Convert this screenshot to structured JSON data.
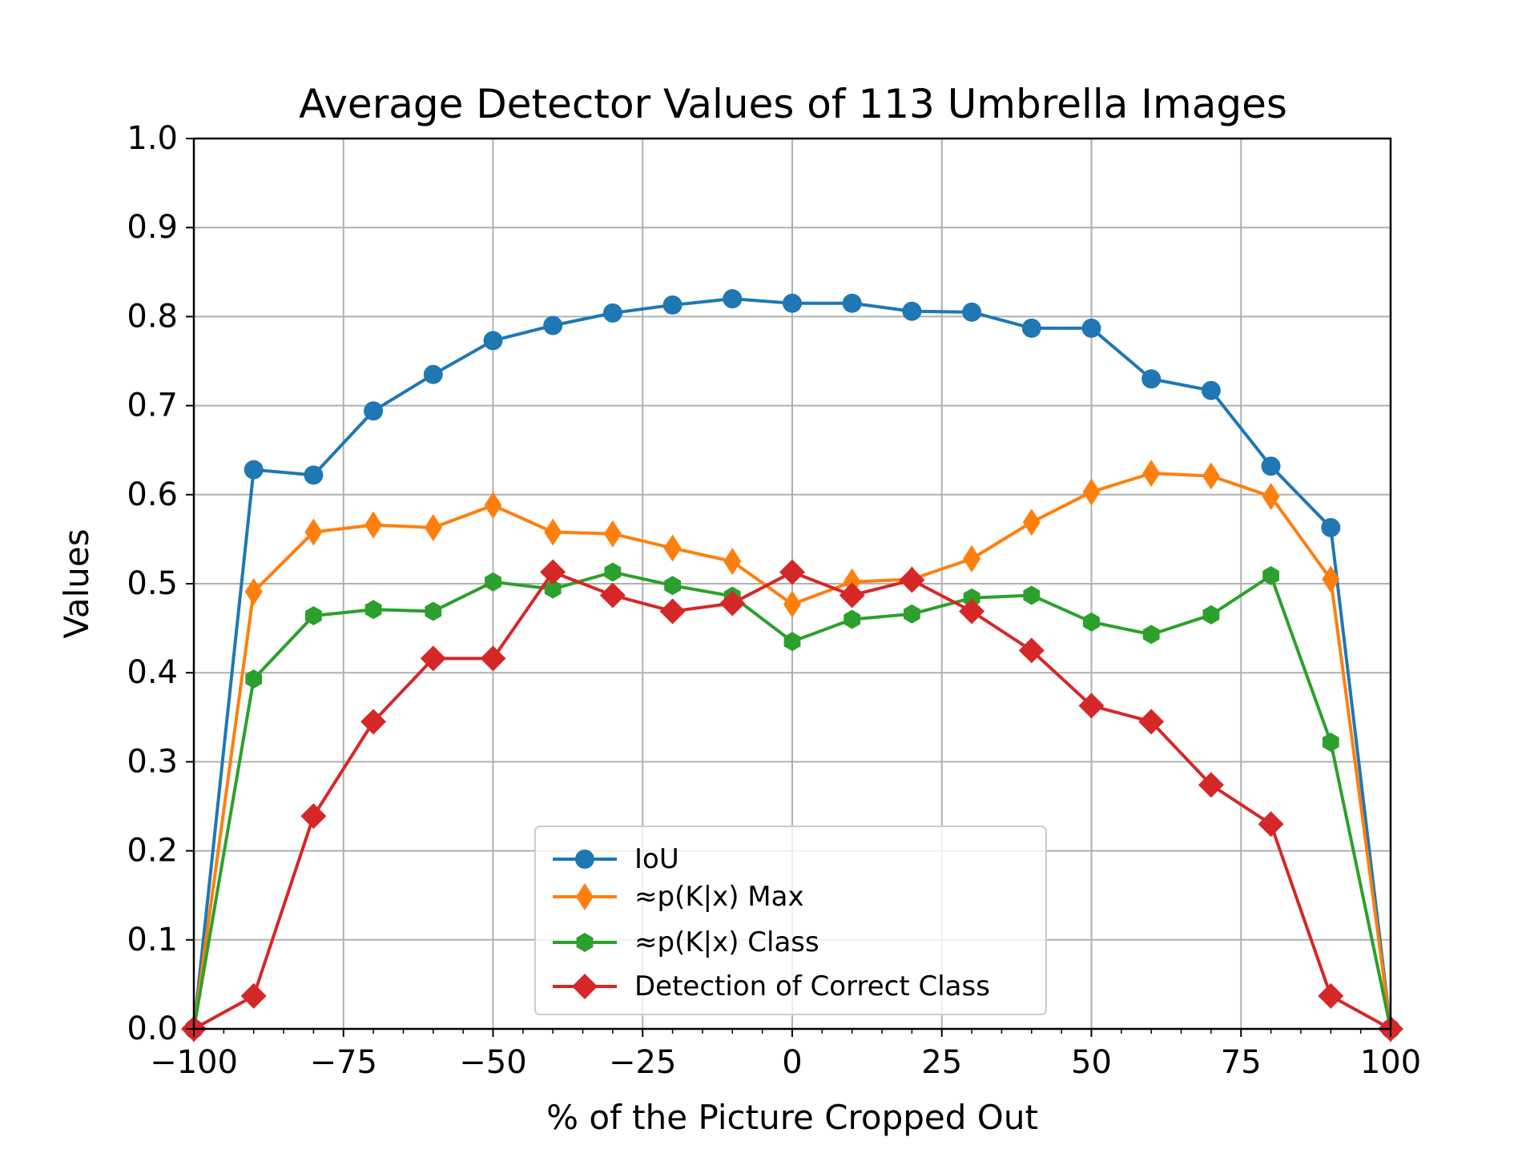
{
  "chart_data": {
    "type": "line",
    "title": "Average Detector Values of 113 Umbrella Images",
    "xlabel": "% of the Picture Cropped Out",
    "ylabel": "Values",
    "xlim": [
      -100,
      100
    ],
    "ylim": [
      0.0,
      1.0
    ],
    "grid": true,
    "legend_position": "lower-center",
    "x_ticks": [
      -100,
      -75,
      -50,
      -25,
      0,
      25,
      50,
      75,
      100
    ],
    "x_tick_labels": [
      "−100",
      "−75",
      "−50",
      "−25",
      "0",
      "25",
      "50",
      "75",
      "100"
    ],
    "y_ticks": [
      0.0,
      0.1,
      0.2,
      0.3,
      0.4,
      0.5,
      0.6,
      0.7,
      0.8,
      0.9,
      1.0
    ],
    "y_tick_labels": [
      "0.0",
      "0.1",
      "0.2",
      "0.3",
      "0.4",
      "0.5",
      "0.6",
      "0.7",
      "0.8",
      "0.9",
      "1.0"
    ],
    "x": [
      -100,
      -90,
      -80,
      -70,
      -60,
      -50,
      -40,
      -30,
      -20,
      -10,
      0,
      10,
      20,
      30,
      40,
      50,
      60,
      70,
      80,
      90,
      100
    ],
    "series": [
      {
        "name": "IoU",
        "color": "#1f77b4",
        "marker": "circle",
        "values": [
          0.0,
          0.628,
          0.622,
          0.694,
          0.735,
          0.773,
          0.79,
          0.804,
          0.813,
          0.82,
          0.815,
          0.815,
          0.806,
          0.805,
          0.787,
          0.787,
          0.73,
          0.717,
          0.632,
          0.563,
          0.0
        ]
      },
      {
        "name": "≈p(K|x) Max",
        "color": "#ff7f0e",
        "marker": "thin-diamond",
        "values": [
          0.0,
          0.491,
          0.558,
          0.566,
          0.563,
          0.588,
          0.558,
          0.556,
          0.54,
          0.525,
          0.477,
          0.502,
          0.505,
          0.528,
          0.569,
          0.603,
          0.624,
          0.621,
          0.598,
          0.505,
          0.0
        ]
      },
      {
        "name": "≈p(K|x) Class",
        "color": "#2ca02c",
        "marker": "hexagon",
        "values": [
          0.0,
          0.393,
          0.464,
          0.471,
          0.469,
          0.502,
          0.494,
          0.513,
          0.498,
          0.486,
          0.435,
          0.46,
          0.466,
          0.484,
          0.487,
          0.457,
          0.443,
          0.465,
          0.509,
          0.322,
          0.0
        ]
      },
      {
        "name": "Detection of Correct Class",
        "color": "#d62728",
        "marker": "diamond",
        "values": [
          0.0,
          0.037,
          0.239,
          0.345,
          0.416,
          0.416,
          0.513,
          0.487,
          0.469,
          0.478,
          0.513,
          0.487,
          0.504,
          0.469,
          0.425,
          0.363,
          0.345,
          0.274,
          0.23,
          0.037,
          0.0
        ]
      }
    ]
  }
}
